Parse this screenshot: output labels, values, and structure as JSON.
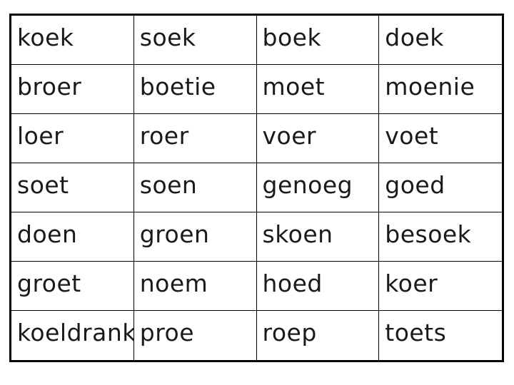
{
  "page": {
    "background": "#ffffff",
    "border_color": "#000000",
    "text_color": "#1a1a1a"
  },
  "word_table": {
    "columns": 4,
    "row_count": 7,
    "rows": [
      [
        "koek",
        "soek",
        "boek",
        "doek"
      ],
      [
        "broer",
        "boetie",
        "moet",
        "moenie"
      ],
      [
        "loer",
        "roer",
        "voer",
        "voet"
      ],
      [
        "soet",
        "soen",
        "genoeg",
        "goed"
      ],
      [
        "doen",
        "groen",
        "skoen",
        "besoek"
      ],
      [
        "groet",
        "noem",
        "hoed",
        "koer"
      ],
      [
        "koeldrank",
        "proe",
        "roep",
        "toets"
      ]
    ]
  }
}
